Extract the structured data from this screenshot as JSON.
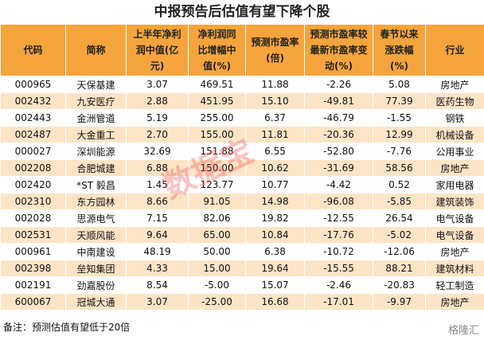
{
  "title": "中报预告后估值有望下降个股",
  "table": {
    "header": [
      "代码",
      "简称",
      "上半年净利润中值(亿元)",
      "净利润同比增幅中值(%)",
      "预测市盈率(倍)",
      "预测市盈率较最新市盈率变动(%)",
      "春节以来涨跌幅(%)",
      "行业"
    ],
    "rows": [
      [
        "000965",
        "天保基建",
        "3.07",
        "469.51",
        "11.88",
        "-2.26",
        "5.08",
        "房地产"
      ],
      [
        "002432",
        "九安医疗",
        "2.88",
        "451.95",
        "15.10",
        "-49.81",
        "77.39",
        "医药生物"
      ],
      [
        "002443",
        "金洲管道",
        "5.19",
        "255.00",
        "6.37",
        "-46.79",
        "-1.55",
        "钢铁"
      ],
      [
        "002487",
        "大金重工",
        "2.70",
        "155.00",
        "11.81",
        "-20.36",
        "12.99",
        "机械设备"
      ],
      [
        "000027",
        "深圳能源",
        "32.69",
        "151.88",
        "6.55",
        "-52.80",
        "-7.76",
        "公用事业"
      ],
      [
        "002208",
        "合肥城建",
        "6.88",
        "150.00",
        "10.62",
        "-31.69",
        "58.56",
        "房地产"
      ],
      [
        "002420",
        "*ST 毅昌",
        "1.45",
        "123.77",
        "10.77",
        "-4.42",
        "0.52",
        "家用电器"
      ],
      [
        "002310",
        "东方园林",
        "8.66",
        "91.05",
        "14.98",
        "-96.08",
        "-5.85",
        "建筑装饰"
      ],
      [
        "002028",
        "思源电气",
        "7.15",
        "82.06",
        "19.82",
        "-12.55",
        "26.54",
        "电气设备"
      ],
      [
        "002531",
        "天顺风能",
        "9.64",
        "65.00",
        "10.84",
        "-17.76",
        "-5.02",
        "电气设备"
      ],
      [
        "000961",
        "中南建设",
        "48.19",
        "50.00",
        "6.38",
        "-10.72",
        "-12.06",
        "房地产"
      ],
      [
        "002398",
        "垒知集团",
        "4.33",
        "15.00",
        "19.64",
        "-15.55",
        "88.21",
        "建筑材料"
      ],
      [
        "002191",
        "劲嘉股份",
        "8.54",
        "-5.00",
        "15.07",
        "-2.46",
        "-20.83",
        "轻工制造"
      ],
      [
        "600067",
        "冠城大通",
        "3.07",
        "-25.00",
        "16.68",
        "-17.01",
        "-9.97",
        "房地产"
      ]
    ]
  },
  "note": "备注：预测估值有望低于20倍",
  "watermark": "数据宝",
  "logo": "格隆汇"
}
